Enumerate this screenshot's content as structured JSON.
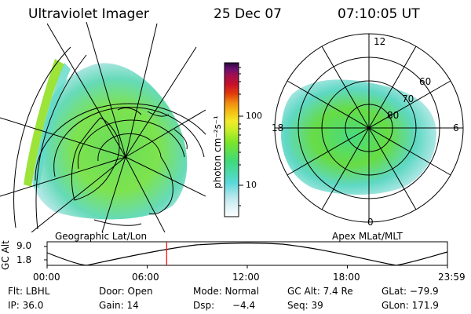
{
  "header": {
    "instrument": "Ultraviolet Imager",
    "date": "25 Dec 07",
    "time": "07:10:05 UT"
  },
  "left_panel": {
    "caption": "Geographic Lat/Lon"
  },
  "colorbar": {
    "label": "photon cm⁻²s⁻¹",
    "ticks": [
      "100",
      "10"
    ],
    "scale": "log",
    "colors": [
      "#ffffff",
      "#bfe8ef",
      "#59d9d9",
      "#3fd97a",
      "#79e52a",
      "#c6ec28",
      "#f2ea2a",
      "#f5c016",
      "#f08a10",
      "#e23a0c",
      "#c8102a",
      "#a01050",
      "#6a1070",
      "#2a0838"
    ]
  },
  "right_panel": {
    "caption": "Apex MLat/MLT",
    "mlt_labels": {
      "top": "12",
      "left": "18",
      "right": "6",
      "bottom": "0"
    },
    "lat_labels": [
      "60",
      "70",
      "80"
    ]
  },
  "timeline": {
    "ylabel": "GC Alt",
    "yticks": [
      "9.0",
      "1.8"
    ],
    "xticks": [
      "00:00",
      "06:00",
      "12:00",
      "18:00",
      "23:59"
    ],
    "current_time_hours": 7.168,
    "marker_color": "#ff0000"
  },
  "info": {
    "row1": {
      "flt": "Flt: LBHL",
      "door": "Door: Open",
      "mode": "Mode: Normal",
      "gcalt": "GC Alt: 7.4 Re",
      "glat": "GLat: −79.9"
    },
    "row2": {
      "ip": "IP: 36.0",
      "gain": "Gain: 14",
      "dsp_label": "Dsp:",
      "dsp_value": "−4.4",
      "seq": "Seq: 39",
      "glon": "GLon: 171.9"
    }
  }
}
